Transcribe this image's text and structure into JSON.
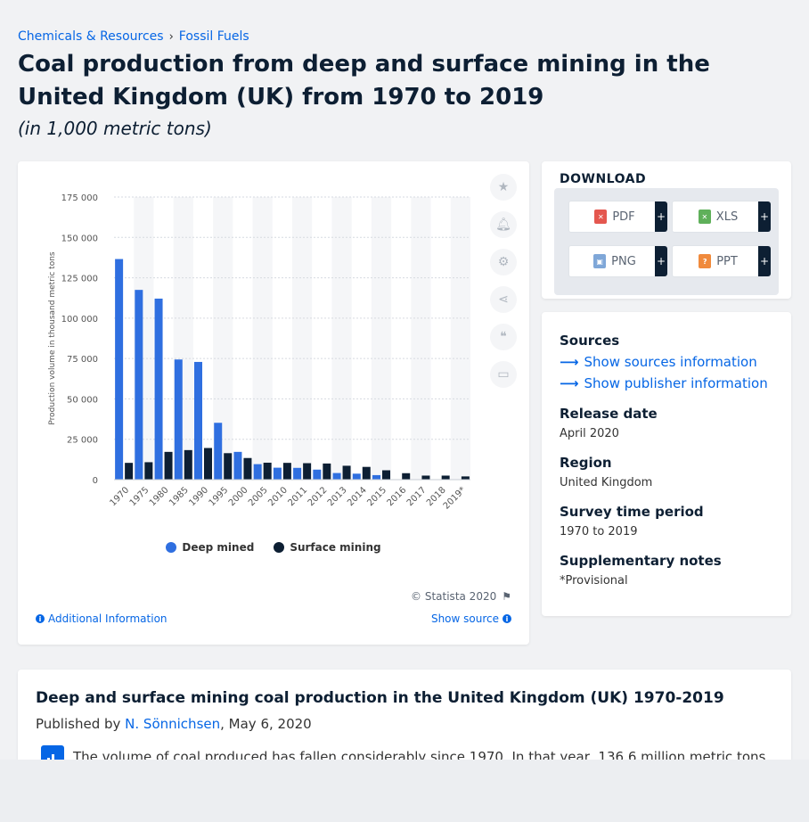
{
  "breadcrumb": {
    "items": [
      "Chemicals & Resources",
      "Fossil Fuels"
    ],
    "separator": "›"
  },
  "title": "Coal production from deep and surface mining in the United Kingdom (UK) from 1970 to 2019",
  "subtitle": "(in 1,000 metric tons)",
  "chart_data": {
    "type": "bar",
    "categories": [
      "1970",
      "1975",
      "1980",
      "1985",
      "1990",
      "1995",
      "2000",
      "2005",
      "2010",
      "2011",
      "2012",
      "2013",
      "2014",
      "2015",
      "2016",
      "2017",
      "2018",
      "2019*"
    ],
    "series": [
      {
        "name": "Deep mined",
        "color": "#2f6fe0",
        "values": [
          136600,
          117500,
          112100,
          74400,
          72900,
          35200,
          17200,
          9600,
          7400,
          7300,
          6200,
          4100,
          3700,
          2800,
          20,
          10,
          10,
          10
        ]
      },
      {
        "name": "Surface mining",
        "color": "#0d1f33",
        "values": [
          10400,
          10800,
          17200,
          18300,
          19600,
          16400,
          13400,
          10500,
          10400,
          10200,
          10000,
          8600,
          7900,
          5800,
          4000,
          2500,
          2500,
          2000
        ]
      }
    ],
    "ylabel": "Production volume in thousand metric tons",
    "ylim": [
      0,
      175000
    ],
    "yticks": [
      0,
      25000,
      50000,
      75000,
      100000,
      125000,
      150000,
      175000
    ],
    "ytick_labels": [
      "0",
      "25 000",
      "50 000",
      "75 000",
      "100 000",
      "125 000",
      "150 000",
      "175 000"
    ],
    "grid": true,
    "legend": "bottom"
  },
  "chart_footer": {
    "copyright": "© Statista 2020",
    "additional_info": "Additional Information",
    "show_source": "Show source"
  },
  "toolbar": {
    "icons": [
      "star-icon",
      "bell-icon",
      "gear-icon",
      "share-icon",
      "quote-icon",
      "print-icon"
    ]
  },
  "download": {
    "title": "DOWNLOAD",
    "buttons": [
      {
        "label": "PDF",
        "icon_color": "#e4574f"
      },
      {
        "label": "XLS",
        "icon_color": "#5fb05a"
      },
      {
        "label": "PNG",
        "icon_color": "#7fa7d8"
      },
      {
        "label": "PPT",
        "icon_color": "#f08a3c"
      }
    ],
    "plus": "+"
  },
  "sources": {
    "heading": "Sources",
    "show_sources": "Show sources information",
    "show_publisher": "Show publisher information",
    "release_date_label": "Release date",
    "release_date": "April 2020",
    "region_label": "Region",
    "region": "United Kingdom",
    "survey_label": "Survey time period",
    "survey": "1970 to 2019",
    "notes_label": "Supplementary notes",
    "notes": "*Provisional"
  },
  "description": {
    "title": "Deep and surface mining coal production in the United Kingdom (UK) 1970-2019",
    "published_prefix": "Published by",
    "author": "N. Sönnichsen",
    "date": ", May 6, 2020",
    "text": "The volume of coal produced has fallen considerably since 1970. In that year, 136.6 million metric tons"
  }
}
